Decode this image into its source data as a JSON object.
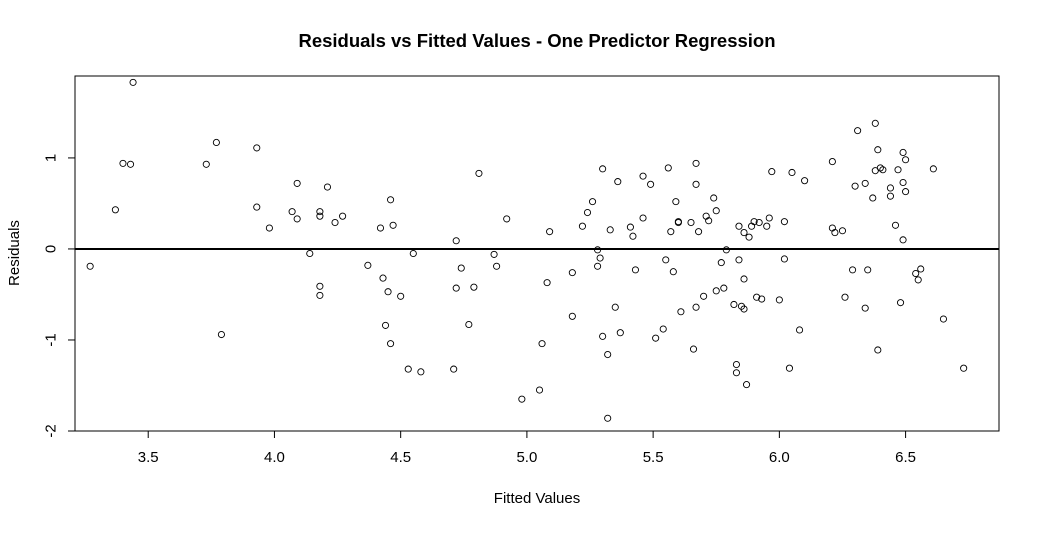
{
  "chart_data": {
    "type": "scatter",
    "title": "Residuals vs Fitted Values - One Predictor Regression",
    "xlabel": "Fitted Values",
    "ylabel": "Residuals",
    "xlim": [
      3.21,
      6.87
    ],
    "ylim": [
      -2.0,
      1.9
    ],
    "xticks": [
      3.5,
      4.0,
      4.5,
      5.0,
      5.5,
      6.0,
      6.5
    ],
    "xtick_labels": [
      "3.5",
      "4.0",
      "4.5",
      "5.0",
      "5.5",
      "6.0",
      "6.5"
    ],
    "yticks": [
      -2,
      -1,
      0,
      1
    ],
    "ytick_labels": [
      "-2",
      "-1",
      "0",
      "1"
    ],
    "reference_line_y": 0,
    "grid": false,
    "marker": "open-circle",
    "points": [
      [
        3.27,
        -0.19
      ],
      [
        3.37,
        0.43
      ],
      [
        3.4,
        0.94
      ],
      [
        3.43,
        0.93
      ],
      [
        3.44,
        1.83
      ],
      [
        3.73,
        0.93
      ],
      [
        3.77,
        1.17
      ],
      [
        3.79,
        -0.94
      ],
      [
        3.93,
        0.46
      ],
      [
        3.93,
        1.11
      ],
      [
        3.98,
        0.23
      ],
      [
        4.07,
        0.41
      ],
      [
        4.09,
        0.33
      ],
      [
        4.09,
        0.72
      ],
      [
        4.14,
        -0.05
      ],
      [
        4.18,
        0.41
      ],
      [
        4.18,
        0.36
      ],
      [
        4.18,
        -0.41
      ],
      [
        4.18,
        -0.51
      ],
      [
        4.21,
        0.68
      ],
      [
        4.24,
        0.29
      ],
      [
        4.27,
        0.36
      ],
      [
        4.37,
        -0.18
      ],
      [
        4.42,
        0.23
      ],
      [
        4.43,
        -0.32
      ],
      [
        4.44,
        -0.84
      ],
      [
        4.45,
        -0.47
      ],
      [
        4.46,
        -1.04
      ],
      [
        4.46,
        0.54
      ],
      [
        4.47,
        0.26
      ],
      [
        4.5,
        -0.52
      ],
      [
        4.53,
        -1.32
      ],
      [
        4.55,
        -0.05
      ],
      [
        4.58,
        -1.35
      ],
      [
        4.71,
        -1.32
      ],
      [
        4.72,
        0.09
      ],
      [
        4.72,
        -0.43
      ],
      [
        4.74,
        -0.21
      ],
      [
        4.77,
        -0.83
      ],
      [
        4.79,
        -0.42
      ],
      [
        4.81,
        0.83
      ],
      [
        4.87,
        -0.06
      ],
      [
        4.88,
        -0.19
      ],
      [
        4.92,
        0.33
      ],
      [
        4.98,
        -1.65
      ],
      [
        5.05,
        -1.55
      ],
      [
        5.06,
        -1.04
      ],
      [
        5.08,
        -0.37
      ],
      [
        5.09,
        0.19
      ],
      [
        5.18,
        -0.26
      ],
      [
        5.18,
        -0.74
      ],
      [
        5.22,
        0.25
      ],
      [
        5.24,
        0.4
      ],
      [
        5.26,
        0.52
      ],
      [
        5.28,
        -0.01
      ],
      [
        5.28,
        -0.19
      ],
      [
        5.29,
        -0.1
      ],
      [
        5.3,
        0.88
      ],
      [
        5.3,
        -0.96
      ],
      [
        5.32,
        -1.16
      ],
      [
        5.32,
        -1.86
      ],
      [
        5.33,
        0.21
      ],
      [
        5.35,
        -0.64
      ],
      [
        5.36,
        0.74
      ],
      [
        5.37,
        -0.92
      ],
      [
        5.41,
        0.24
      ],
      [
        5.42,
        0.14
      ],
      [
        5.43,
        -0.23
      ],
      [
        5.46,
        0.8
      ],
      [
        5.46,
        0.34
      ],
      [
        5.49,
        0.71
      ],
      [
        5.51,
        -0.98
      ],
      [
        5.54,
        -0.88
      ],
      [
        5.55,
        -0.12
      ],
      [
        5.56,
        0.89
      ],
      [
        5.57,
        0.19
      ],
      [
        5.58,
        -0.25
      ],
      [
        5.59,
        0.52
      ],
      [
        5.6,
        0.29
      ],
      [
        5.6,
        0.3
      ],
      [
        5.61,
        -0.69
      ],
      [
        5.65,
        0.29
      ],
      [
        5.66,
        -1.1
      ],
      [
        5.67,
        -0.64
      ],
      [
        5.67,
        0.71
      ],
      [
        5.67,
        0.94
      ],
      [
        5.68,
        0.19
      ],
      [
        5.7,
        -0.52
      ],
      [
        5.71,
        0.36
      ],
      [
        5.72,
        0.31
      ],
      [
        5.74,
        0.56
      ],
      [
        5.75,
        0.42
      ],
      [
        5.75,
        -0.46
      ],
      [
        5.77,
        -0.15
      ],
      [
        5.78,
        -0.43
      ],
      [
        5.79,
        -0.01
      ],
      [
        5.82,
        -0.61
      ],
      [
        5.83,
        -1.27
      ],
      [
        5.83,
        -1.36
      ],
      [
        5.84,
        -0.12
      ],
      [
        5.84,
        0.25
      ],
      [
        5.85,
        -0.63
      ],
      [
        5.86,
        -0.33
      ],
      [
        5.86,
        -0.66
      ],
      [
        5.86,
        0.18
      ],
      [
        5.87,
        -1.49
      ],
      [
        5.88,
        0.13
      ],
      [
        5.89,
        0.25
      ],
      [
        5.9,
        0.3
      ],
      [
        5.91,
        -0.53
      ],
      [
        5.92,
        0.29
      ],
      [
        5.93,
        -0.55
      ],
      [
        5.95,
        0.25
      ],
      [
        5.96,
        0.34
      ],
      [
        5.97,
        0.85
      ],
      [
        6.0,
        -0.56
      ],
      [
        6.02,
        0.3
      ],
      [
        6.02,
        -0.11
      ],
      [
        6.04,
        -1.31
      ],
      [
        6.05,
        0.84
      ],
      [
        6.08,
        -0.89
      ],
      [
        6.1,
        0.75
      ],
      [
        6.21,
        0.96
      ],
      [
        6.21,
        0.23
      ],
      [
        6.22,
        0.18
      ],
      [
        6.25,
        0.2
      ],
      [
        6.26,
        -0.53
      ],
      [
        6.29,
        -0.23
      ],
      [
        6.3,
        0.69
      ],
      [
        6.31,
        1.3
      ],
      [
        6.34,
        0.72
      ],
      [
        6.34,
        -0.65
      ],
      [
        6.35,
        -0.23
      ],
      [
        6.37,
        0.56
      ],
      [
        6.38,
        1.38
      ],
      [
        6.38,
        0.86
      ],
      [
        6.39,
        1.09
      ],
      [
        6.39,
        -1.11
      ],
      [
        6.4,
        0.89
      ],
      [
        6.41,
        0.87
      ],
      [
        6.44,
        0.58
      ],
      [
        6.44,
        0.67
      ],
      [
        6.46,
        0.26
      ],
      [
        6.47,
        0.87
      ],
      [
        6.48,
        -0.59
      ],
      [
        6.49,
        1.06
      ],
      [
        6.49,
        0.1
      ],
      [
        6.49,
        0.73
      ],
      [
        6.5,
        0.63
      ],
      [
        6.5,
        0.98
      ],
      [
        6.54,
        -0.27
      ],
      [
        6.55,
        -0.34
      ],
      [
        6.56,
        -0.22
      ],
      [
        6.61,
        0.88
      ],
      [
        6.65,
        -0.77
      ],
      [
        6.73,
        -1.31
      ]
    ]
  }
}
